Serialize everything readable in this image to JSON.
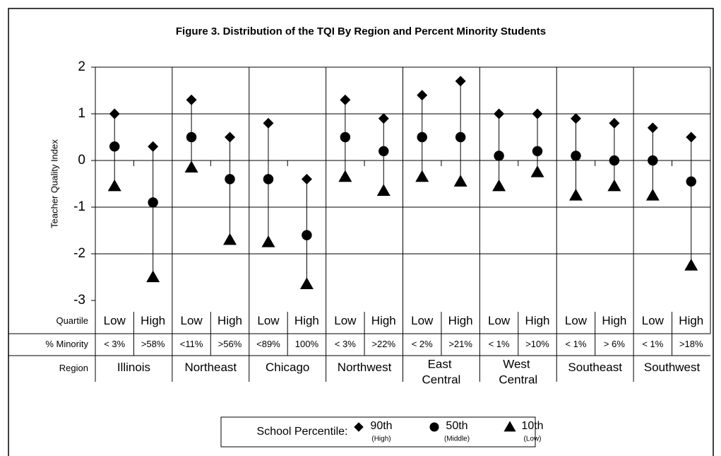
{
  "chart_data": {
    "type": "dot-range",
    "title": "Figure 3. Distribution of the TQI By Region and Percent Minority Students",
    "y_label": "Teacher Quality Index",
    "row_labels": [
      "Quartile",
      "% Minority",
      "Region"
    ],
    "categories": [
      "Low",
      "High",
      "Low",
      "High",
      "Low",
      "High",
      "Low",
      "High",
      "Low",
      "High",
      "Low",
      "High",
      "Low",
      "High",
      "Low",
      "High"
    ],
    "minority": [
      "< 3%",
      ">58%",
      "<11%",
      ">56%",
      "<89%",
      "100%",
      "< 3%",
      ">22%",
      "< 2%",
      ">21%",
      "< 1%",
      ">10%",
      "< 1%",
      "> 6%",
      "< 1%",
      ">18%"
    ],
    "regions": [
      "Illinois",
      "Northeast",
      "Chicago",
      "Northwest",
      "East Central",
      "West Central",
      "Southeast",
      "Southwest"
    ],
    "legend_title": "School Percentile:",
    "series": [
      {
        "name": "90th",
        "sublabel": "(High)",
        "marker": "diamond",
        "color": "#000000",
        "values": [
          1.0,
          0.3,
          1.3,
          0.5,
          0.8,
          -0.4,
          1.3,
          0.9,
          1.4,
          1.7,
          1.0,
          1.0,
          0.9,
          0.8,
          0.7,
          0.5
        ]
      },
      {
        "name": "50th",
        "sublabel": "(Middle)",
        "marker": "circle",
        "color": "#000000",
        "values": [
          0.3,
          -0.9,
          0.5,
          -0.4,
          -0.4,
          -1.6,
          0.5,
          0.2,
          0.5,
          0.5,
          0.1,
          0.2,
          0.1,
          0.0,
          0.0,
          -0.45
        ]
      },
      {
        "name": "10th",
        "sublabel": "(Low)",
        "marker": "triangle",
        "color": "#000000",
        "values": [
          -0.55,
          -2.5,
          -0.15,
          -1.7,
          -1.75,
          -2.65,
          -0.35,
          -0.65,
          -0.35,
          -0.45,
          -0.55,
          -0.25,
          -0.75,
          -0.55,
          -0.75,
          -2.25
        ]
      }
    ],
    "ylim": [
      -3,
      2
    ],
    "yticks": [
      -3,
      -2,
      -1,
      0,
      1,
      2
    ],
    "grid": true
  }
}
